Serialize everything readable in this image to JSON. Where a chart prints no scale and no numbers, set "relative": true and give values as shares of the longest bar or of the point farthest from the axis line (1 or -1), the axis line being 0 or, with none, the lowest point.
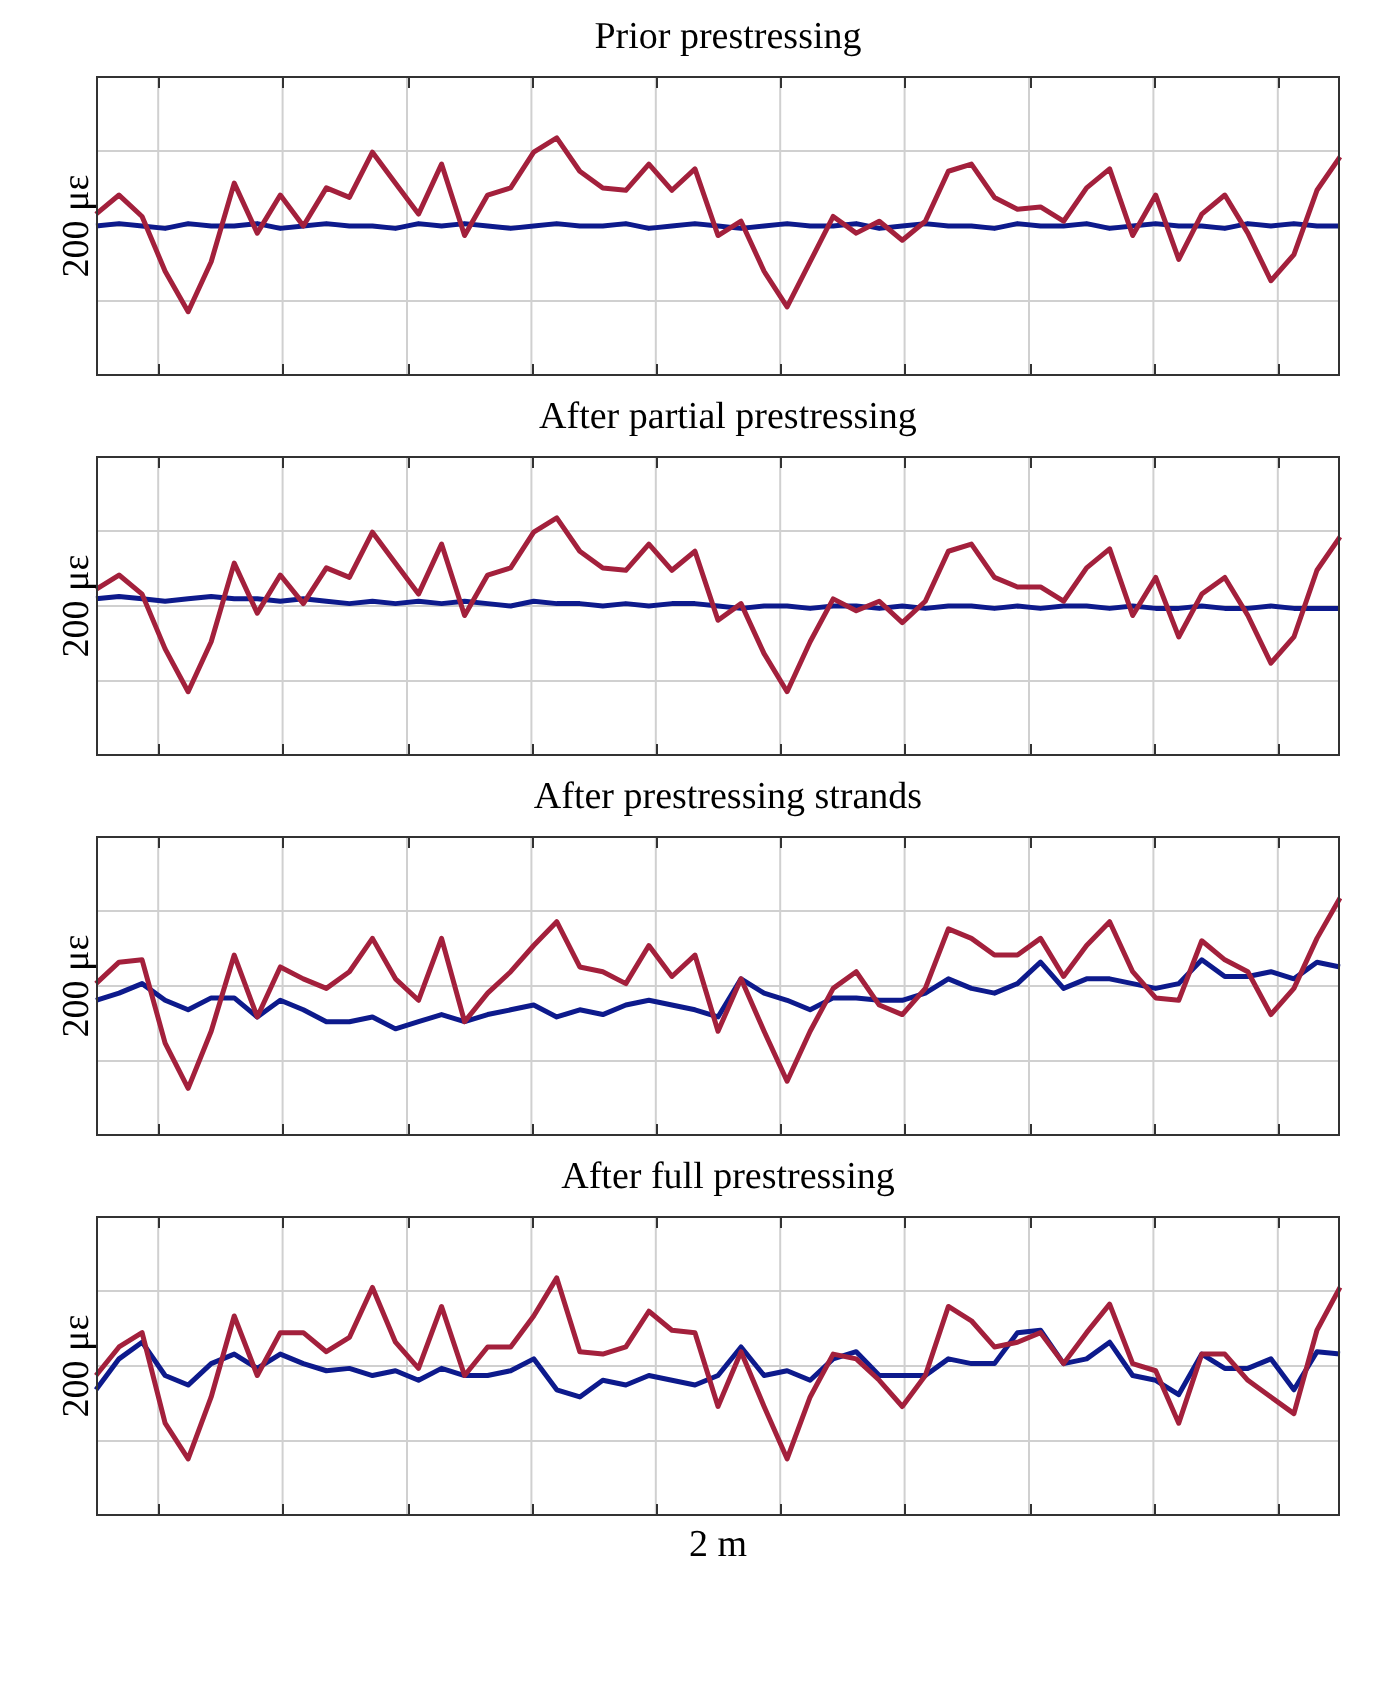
{
  "chart_data": [
    {
      "type": "line",
      "title": "Prior prestressing",
      "ylabel": "200 με",
      "relative": true,
      "grid": true,
      "categories": [
        null,
        null,
        null,
        null,
        null,
        null,
        null,
        null,
        null,
        null,
        null,
        null,
        null,
        null,
        null,
        null,
        null,
        null,
        null,
        null,
        null,
        null,
        null,
        null,
        null,
        null,
        null,
        null,
        null,
        null,
        null,
        null,
        null,
        null,
        null,
        null,
        null,
        null,
        null,
        null,
        null,
        null,
        null,
        null,
        null,
        null,
        null,
        null,
        null,
        null,
        null,
        null,
        null,
        null,
        null
      ],
      "series": [
        {
          "color": "#0d1a8c",
          "values": [
            0.63,
            0.64,
            0.63,
            0.62,
            0.64,
            0.63,
            0.63,
            0.64,
            0.62,
            0.63,
            0.64,
            0.63,
            0.63,
            0.62,
            0.64,
            0.63,
            0.64,
            0.63,
            0.62,
            0.63,
            0.64,
            0.63,
            0.63,
            0.64,
            0.62,
            0.63,
            0.64,
            0.63,
            0.62,
            0.63,
            0.64,
            0.63,
            0.63,
            0.64,
            0.62,
            0.63,
            0.64,
            0.63,
            0.63,
            0.62,
            0.64,
            0.63,
            0.63,
            0.64,
            0.62,
            0.63,
            0.64,
            0.63,
            0.63,
            0.62,
            0.64,
            0.63,
            0.64,
            0.63,
            0.63
          ]
        },
        {
          "color": "#a3203c",
          "values": [
            0.68,
            0.76,
            0.67,
            0.44,
            0.27,
            0.48,
            0.81,
            0.6,
            0.76,
            0.63,
            0.79,
            0.75,
            0.94,
            0.81,
            0.68,
            0.89,
            0.59,
            0.76,
            0.79,
            0.94,
            1,
            0.86,
            0.79,
            0.78,
            0.89,
            0.78,
            0.87,
            0.59,
            0.65,
            0.44,
            0.29,
            0.48,
            0.67,
            0.6,
            0.65,
            0.57,
            0.65,
            0.86,
            0.89,
            0.75,
            0.7,
            0.71,
            0.65,
            0.79,
            0.87,
            0.59,
            0.76,
            0.49,
            0.68,
            0.76,
            0.6,
            0.4,
            0.51,
            0.78,
            0.92
          ]
        }
      ]
    },
    {
      "type": "line",
      "title": "After partial prestressing",
      "ylabel": "200 με",
      "relative": true,
      "grid": true,
      "categories": [
        null,
        null,
        null,
        null,
        null,
        null,
        null,
        null,
        null,
        null,
        null,
        null,
        null,
        null,
        null,
        null,
        null,
        null,
        null,
        null,
        null,
        null,
        null,
        null,
        null,
        null,
        null,
        null,
        null,
        null,
        null,
        null,
        null,
        null,
        null,
        null,
        null,
        null,
        null,
        null,
        null,
        null,
        null,
        null,
        null,
        null,
        null,
        null,
        null,
        null,
        null,
        null,
        null,
        null,
        null
      ],
      "series": [
        {
          "color": "#0d1a8c",
          "values": [
            0.66,
            0.67,
            0.66,
            0.65,
            0.66,
            0.67,
            0.66,
            0.66,
            0.65,
            0.66,
            0.65,
            0.64,
            0.65,
            0.64,
            0.65,
            0.64,
            0.65,
            0.64,
            0.63,
            0.65,
            0.64,
            0.64,
            0.63,
            0.64,
            0.63,
            0.64,
            0.64,
            0.63,
            0.62,
            0.63,
            0.63,
            0.62,
            0.63,
            0.63,
            0.62,
            0.63,
            0.62,
            0.63,
            0.63,
            0.62,
            0.63,
            0.62,
            0.63,
            0.63,
            0.62,
            0.63,
            0.62,
            0.62,
            0.63,
            0.62,
            0.62,
            0.63,
            0.62,
            0.62,
            0.62
          ]
        },
        {
          "color": "#a3203c",
          "values": [
            0.7,
            0.76,
            0.68,
            0.45,
            0.27,
            0.48,
            0.81,
            0.6,
            0.76,
            0.64,
            0.79,
            0.75,
            0.94,
            0.81,
            0.68,
            0.89,
            0.59,
            0.76,
            0.79,
            0.94,
            1,
            0.86,
            0.79,
            0.78,
            0.89,
            0.78,
            0.86,
            0.57,
            0.64,
            0.43,
            0.27,
            0.48,
            0.66,
            0.61,
            0.65,
            0.56,
            0.65,
            0.86,
            0.89,
            0.75,
            0.71,
            0.71,
            0.65,
            0.79,
            0.87,
            0.59,
            0.75,
            0.5,
            0.68,
            0.75,
            0.59,
            0.39,
            0.5,
            0.78,
            0.92
          ]
        }
      ]
    },
    {
      "type": "line",
      "title": "After prestressing strands",
      "ylabel": "200 με",
      "relative": true,
      "grid": true,
      "categories": [
        null,
        null,
        null,
        null,
        null,
        null,
        null,
        null,
        null,
        null,
        null,
        null,
        null,
        null,
        null,
        null,
        null,
        null,
        null,
        null,
        null,
        null,
        null,
        null,
        null,
        null,
        null,
        null,
        null,
        null,
        null,
        null,
        null,
        null,
        null,
        null,
        null,
        null,
        null,
        null,
        null,
        null,
        null,
        null,
        null,
        null,
        null,
        null,
        null,
        null,
        null,
        null,
        null,
        null,
        null
      ],
      "series": [
        {
          "color": "#0d1a8c",
          "values": [
            0.57,
            0.6,
            0.64,
            0.57,
            0.53,
            0.58,
            0.58,
            0.5,
            0.57,
            0.53,
            0.48,
            0.48,
            0.5,
            0.45,
            0.48,
            0.51,
            0.48,
            0.51,
            0.53,
            0.55,
            0.5,
            0.53,
            0.51,
            0.55,
            0.57,
            0.55,
            0.53,
            0.5,
            0.66,
            0.6,
            0.57,
            0.53,
            0.58,
            0.58,
            0.57,
            0.57,
            0.6,
            0.66,
            0.62,
            0.6,
            0.64,
            0.73,
            0.62,
            0.66,
            0.66,
            0.64,
            0.62,
            0.64,
            0.74,
            0.67,
            0.67,
            0.69,
            0.66,
            0.73,
            0.71
          ]
        },
        {
          "color": "#a3203c",
          "values": [
            0.64,
            0.73,
            0.74,
            0.39,
            0.2,
            0.44,
            0.76,
            0.5,
            0.71,
            0.66,
            0.62,
            0.69,
            0.83,
            0.66,
            0.57,
            0.83,
            0.48,
            0.6,
            0.69,
            0.8,
            0.9,
            0.71,
            0.69,
            0.64,
            0.8,
            0.67,
            0.76,
            0.44,
            0.66,
            0.44,
            0.23,
            0.44,
            0.62,
            0.69,
            0.55,
            0.51,
            0.62,
            0.87,
            0.83,
            0.76,
            0.76,
            0.83,
            0.67,
            0.8,
            0.9,
            0.69,
            0.58,
            0.57,
            0.82,
            0.74,
            0.69,
            0.51,
            0.62,
            0.83,
            1
          ]
        }
      ]
    },
    {
      "type": "line",
      "title": "After full prestressing",
      "xlabel": "2 m",
      "ylabel": "200 με",
      "relative": true,
      "grid": true,
      "categories": [
        null,
        null,
        null,
        null,
        null,
        null,
        null,
        null,
        null,
        null,
        null,
        null,
        null,
        null,
        null,
        null,
        null,
        null,
        null,
        null,
        null,
        null,
        null,
        null,
        null,
        null,
        null,
        null,
        null,
        null,
        null,
        null,
        null,
        null,
        null,
        null,
        null,
        null,
        null,
        null,
        null,
        null,
        null,
        null,
        null,
        null,
        null,
        null,
        null,
        null,
        null,
        null,
        null,
        null,
        null
      ],
      "series": [
        {
          "color": "#0d1a8c",
          "values": [
            0.53,
            0.66,
            0.73,
            0.59,
            0.55,
            0.64,
            0.68,
            0.62,
            0.68,
            0.64,
            0.61,
            0.62,
            0.59,
            0.61,
            0.57,
            0.62,
            0.59,
            0.59,
            0.61,
            0.66,
            0.53,
            0.5,
            0.57,
            0.55,
            0.59,
            0.57,
            0.55,
            0.59,
            0.71,
            0.59,
            0.61,
            0.57,
            0.66,
            0.69,
            0.59,
            0.59,
            0.59,
            0.66,
            0.64,
            0.64,
            0.77,
            0.78,
            0.64,
            0.66,
            0.73,
            0.59,
            0.57,
            0.51,
            0.68,
            0.62,
            0.62,
            0.66,
            0.53,
            0.69,
            0.68
          ]
        },
        {
          "color": "#a3203c",
          "values": [
            0.59,
            0.71,
            0.77,
            0.39,
            0.24,
            0.5,
            0.84,
            0.59,
            0.77,
            0.77,
            0.69,
            0.75,
            0.96,
            0.73,
            0.62,
            0.88,
            0.59,
            0.71,
            0.71,
            0.84,
            1,
            0.69,
            0.68,
            0.71,
            0.86,
            0.78,
            0.77,
            0.46,
            0.69,
            0.46,
            0.24,
            0.5,
            0.68,
            0.66,
            0.57,
            0.46,
            0.59,
            0.88,
            0.82,
            0.71,
            0.73,
            0.77,
            0.64,
            0.77,
            0.89,
            0.64,
            0.61,
            0.39,
            0.68,
            0.68,
            0.57,
            0.5,
            0.43,
            0.78,
            0.96
          ]
        }
      ]
    }
  ]
}
